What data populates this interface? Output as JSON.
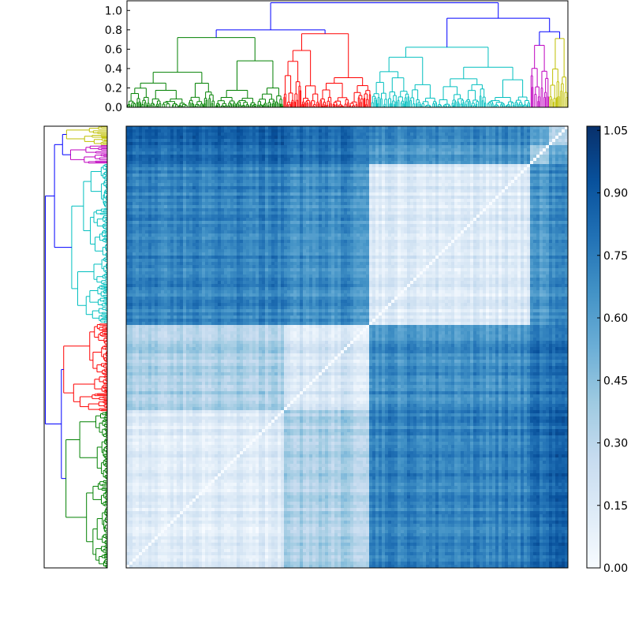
{
  "chart_data": [
    {
      "type": "dendrogram",
      "orientation": "top",
      "ylim": [
        0,
        1.1
      ],
      "yticks": [
        "0.0",
        "0.2",
        "0.4",
        "0.6",
        "0.8",
        "1.0"
      ],
      "ytick_values": [
        0.0,
        0.2,
        0.4,
        0.6,
        0.8,
        1.0
      ],
      "clusters": [
        {
          "color": "green",
          "hex": "#008000",
          "start": 0.0,
          "end": 0.355,
          "merge_height": 0.72
        },
        {
          "color": "red",
          "hex": "#ff0000",
          "start": 0.355,
          "end": 0.553,
          "merge_height": 0.76
        },
        {
          "color": "cyan",
          "hex": "#00bfbf",
          "start": 0.553,
          "end": 0.915,
          "merge_height": 0.62
        },
        {
          "color": "magenta",
          "hex": "#bf00bf",
          "start": 0.915,
          "end": 0.957,
          "merge_height": 0.64
        },
        {
          "color": "yellow",
          "hex": "#bfbf00",
          "start": 0.957,
          "end": 1.0,
          "merge_height": 0.71
        }
      ],
      "link_color": "#0000ff",
      "links": [
        {
          "a": "green",
          "b": "red",
          "height": 0.8
        },
        {
          "a": "magenta",
          "b": "yellow",
          "height": 0.78
        },
        {
          "a": "cyan",
          "b": "magenta+yellow",
          "height": 0.92
        },
        {
          "a": "green+red",
          "b": "cyan+magenta+yellow",
          "height": 1.08
        }
      ]
    },
    {
      "type": "dendrogram",
      "orientation": "left",
      "note": "mirrors the top dendrogram, rotated; leaf order bottom-to-top"
    },
    {
      "type": "heatmap",
      "colormap": "Blues",
      "n": 140,
      "description": "pairwise distance matrix, diagonal = 0",
      "block_order": [
        "green",
        "red",
        "cyan",
        "magenta",
        "yellow"
      ],
      "block_fractions": [
        0.355,
        0.198,
        0.362,
        0.042,
        0.043
      ],
      "within_block_mean": [
        0.12,
        0.18,
        0.15,
        0.35,
        0.3
      ],
      "between_block_mean": {
        "green-red": 0.35,
        "green-cyan": 0.72,
        "green-magenta": 0.8,
        "green-yellow": 0.85,
        "red-cyan": 0.68,
        "red-magenta": 0.78,
        "red-yellow": 0.8,
        "cyan-magenta": 0.62,
        "cyan-yellow": 0.7,
        "magenta-yellow": 0.55
      },
      "colorbar": {
        "range": [
          0.0,
          1.06
        ],
        "ticks": [
          "0.00",
          "0.15",
          "0.30",
          "0.45",
          "0.60",
          "0.75",
          "0.90",
          "1.05"
        ],
        "tick_values": [
          0.0,
          0.15,
          0.3,
          0.45,
          0.6,
          0.75,
          0.9,
          1.05
        ]
      }
    }
  ]
}
